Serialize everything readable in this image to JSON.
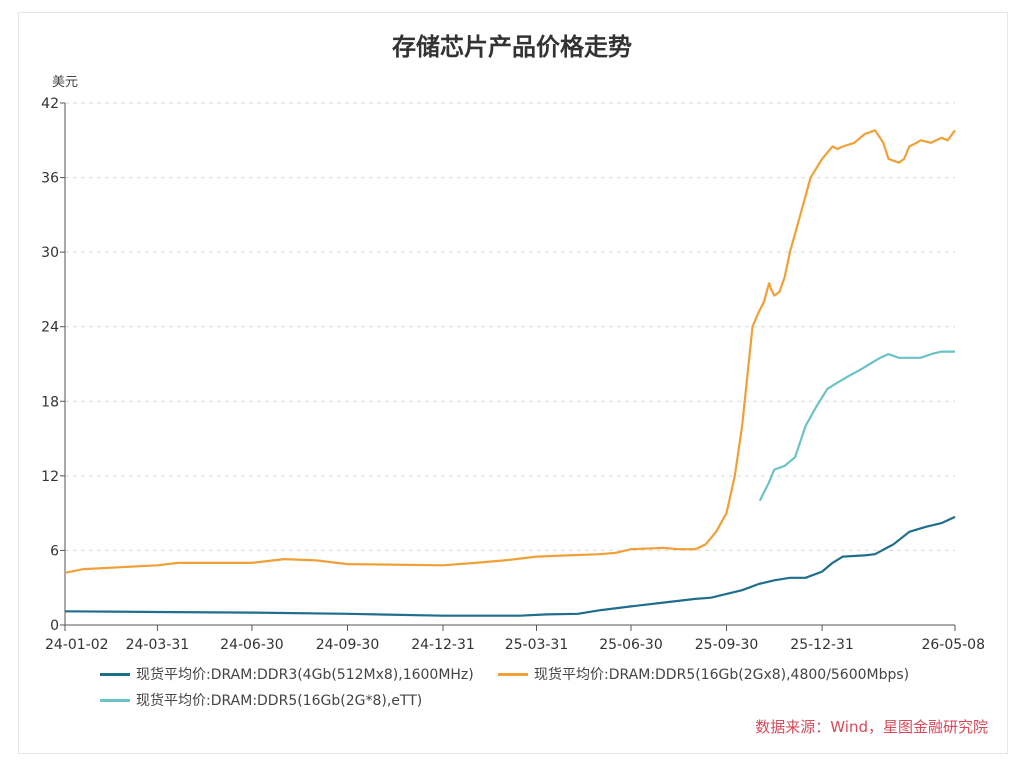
{
  "chart_data": {
    "type": "line",
    "title": "存储芯片产品价格走势",
    "ylabel": "美元",
    "ylim": [
      0,
      42
    ],
    "yticks": [
      0,
      6,
      12,
      18,
      24,
      30,
      36,
      42
    ],
    "y_tick_labels": [
      "0",
      "6",
      "12",
      "18",
      "24",
      "30",
      "36",
      "42"
    ],
    "xlim": [
      "2024-01-02",
      "2026-05-08"
    ],
    "x_tick_dates": [
      "2024-01-02",
      "2024-03-31",
      "2024-06-30",
      "2024-09-30",
      "2024-12-31",
      "2025-03-31",
      "2025-06-30",
      "2025-09-30",
      "2025-12-31",
      "2026-05-08"
    ],
    "x_tick_labels": [
      "24-01-02",
      "24-03-31",
      "24-06-30",
      "24-09-30",
      "24-12-31",
      "25-03-31",
      "25-06-30",
      "25-09-30",
      "25-12-31",
      "26-05-08"
    ],
    "grid": "horizontal-dashed",
    "legend_position": "bottom",
    "series": [
      {
        "name": "现货平均价:DRAM:DDR3(4Gb(512Mx8),1600MHz)",
        "color": "#1f6e8c",
        "x": [
          "2024-01-02",
          "2024-03-31",
          "2024-06-30",
          "2024-09-30",
          "2024-12-31",
          "2025-03-15",
          "2025-04-10",
          "2025-05-10",
          "2025-06-01",
          "2025-06-30",
          "2025-07-31",
          "2025-08-31",
          "2025-09-15",
          "2025-09-30",
          "2025-10-15",
          "2025-10-31",
          "2025-11-15",
          "2025-11-30",
          "2025-12-15",
          "2025-12-31",
          "2026-01-10",
          "2026-01-20",
          "2026-02-10",
          "2026-02-20",
          "2026-03-10",
          "2026-03-25",
          "2026-04-10",
          "2026-04-25",
          "2026-05-08"
        ],
        "y": [
          1.1,
          1.05,
          1.0,
          0.9,
          0.75,
          0.75,
          0.85,
          0.9,
          1.2,
          1.5,
          1.8,
          2.1,
          2.2,
          2.5,
          2.8,
          3.3,
          3.6,
          3.8,
          3.8,
          4.3,
          5.0,
          5.5,
          5.6,
          5.7,
          6.5,
          7.5,
          7.9,
          8.2,
          8.7
        ]
      },
      {
        "name": "现货平均价:DRAM:DDR5(16Gb(2Gx8),4800/5600Mbps)",
        "color": "#f0a036",
        "x": [
          "2024-01-02",
          "2024-01-20",
          "2024-03-31",
          "2024-04-20",
          "2024-06-30",
          "2024-07-31",
          "2024-08-31",
          "2024-09-30",
          "2024-12-31",
          "2025-01-31",
          "2025-02-28",
          "2025-03-31",
          "2025-04-30",
          "2025-05-31",
          "2025-06-15",
          "2025-06-30",
          "2025-07-31",
          "2025-08-15",
          "2025-08-31",
          "2025-09-10",
          "2025-09-20",
          "2025-09-30",
          "2025-10-08",
          "2025-10-15",
          "2025-10-20",
          "2025-10-25",
          "2025-10-30",
          "2025-11-05",
          "2025-11-10",
          "2025-11-12",
          "2025-11-15",
          "2025-11-20",
          "2025-11-25",
          "2025-11-30",
          "2025-12-10",
          "2025-12-20",
          "2025-12-31",
          "2026-01-05",
          "2026-01-10",
          "2026-01-15",
          "2026-01-20",
          "2026-01-31",
          "2026-02-10",
          "2026-02-20",
          "2026-02-28",
          "2026-03-05",
          "2026-03-15",
          "2026-03-20",
          "2026-03-25",
          "2026-04-01",
          "2026-04-05",
          "2026-04-15",
          "2026-04-25",
          "2026-05-01",
          "2026-05-08"
        ],
        "y": [
          4.2,
          4.5,
          4.8,
          5.0,
          5.0,
          5.3,
          5.2,
          4.9,
          4.8,
          5.0,
          5.2,
          5.5,
          5.6,
          5.7,
          5.8,
          6.1,
          6.2,
          6.1,
          6.1,
          6.5,
          7.5,
          9.0,
          12.0,
          16.0,
          20.0,
          24.0,
          25.0,
          26.0,
          27.5,
          27.0,
          26.5,
          26.8,
          28.0,
          30.0,
          33.0,
          36.0,
          37.5,
          38.0,
          38.5,
          38.3,
          38.5,
          38.8,
          39.5,
          39.8,
          38.8,
          37.5,
          37.2,
          37.5,
          38.5,
          38.8,
          39.0,
          38.8,
          39.2,
          39.0,
          39.8
        ]
      },
      {
        "name": "现货平均价:DRAM:DDR5(16Gb(2G*8),eTT)",
        "color": "#6cc3c5",
        "x": [
          "2025-11-01",
          "2025-11-10",
          "2025-11-15",
          "2025-11-25",
          "2025-12-05",
          "2025-12-15",
          "2025-12-25",
          "2026-01-05",
          "2026-01-15",
          "2026-01-25",
          "2026-02-05",
          "2026-02-15",
          "2026-02-25",
          "2026-03-05",
          "2026-03-15",
          "2026-03-25",
          "2026-04-05",
          "2026-04-15",
          "2026-04-25",
          "2026-05-08"
        ],
        "y": [
          10.0,
          11.5,
          12.5,
          12.8,
          13.5,
          16.0,
          17.5,
          19.0,
          19.5,
          20.0,
          20.5,
          21.0,
          21.5,
          21.8,
          21.5,
          21.5,
          21.5,
          21.8,
          22.0,
          22.0
        ]
      }
    ]
  },
  "source": "数据来源：Wind，星图金融研究院"
}
